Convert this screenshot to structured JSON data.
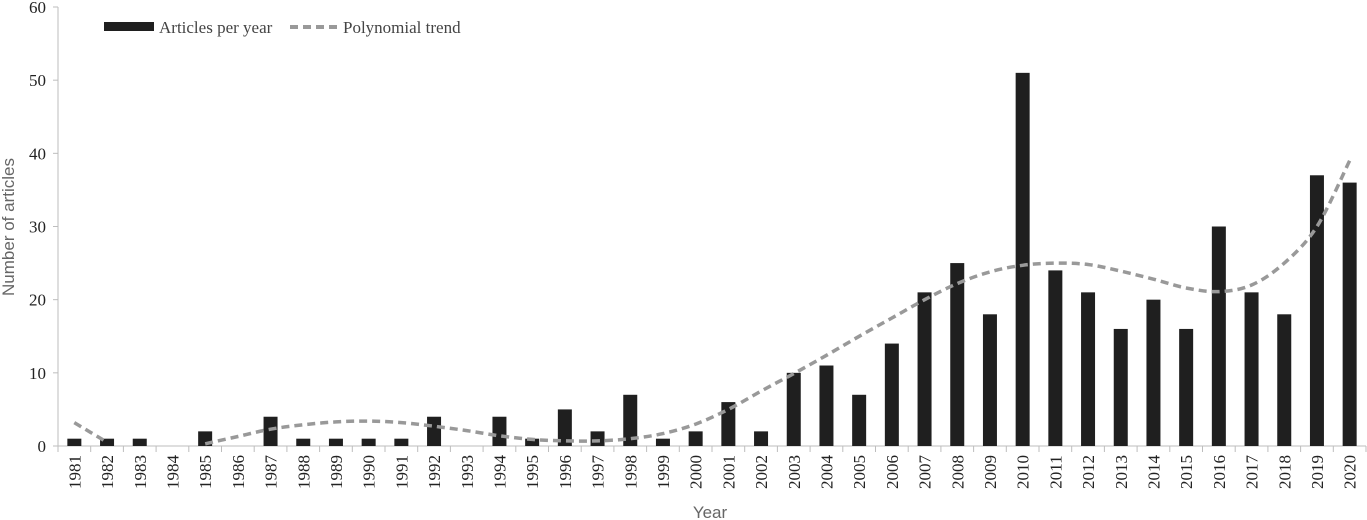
{
  "chart_data": {
    "type": "bar",
    "categories": [
      "1981",
      "1982",
      "1983",
      "1984",
      "1985",
      "1986",
      "1987",
      "1988",
      "1989",
      "1990",
      "1991",
      "1992",
      "1993",
      "1994",
      "1995",
      "1996",
      "1997",
      "1998",
      "1999",
      "2000",
      "2001",
      "2002",
      "2003",
      "2004",
      "2005",
      "2006",
      "2007",
      "2008",
      "2009",
      "2010",
      "2011",
      "2012",
      "2013",
      "2014",
      "2015",
      "2016",
      "2017",
      "2018",
      "2019",
      "2020"
    ],
    "series": [
      {
        "name": "Articles per year",
        "type": "bar",
        "color": "#1f1f1f",
        "values": [
          1,
          1,
          1,
          0,
          2,
          0,
          4,
          1,
          1,
          1,
          1,
          4,
          0,
          4,
          1,
          5,
          2,
          7,
          1,
          2,
          6,
          2,
          10,
          11,
          7,
          14,
          21,
          25,
          18,
          51,
          24,
          21,
          16,
          20,
          16,
          30,
          21,
          18,
          37,
          36
        ]
      },
      {
        "name": "Polynomial trend",
        "type": "line",
        "style": "dashed",
        "color": "#999999",
        "values": [
          3.2,
          0.5,
          null,
          null,
          0.3,
          1.3,
          2.3,
          2.9,
          3.3,
          3.4,
          3.2,
          2.7,
          2.1,
          1.4,
          0.9,
          0.7,
          0.7,
          1.0,
          1.7,
          3.0,
          5.0,
          7.5,
          9.9,
          12.4,
          15.0,
          17.5,
          20.0,
          22.2,
          23.8,
          24.7,
          25.0,
          24.8,
          23.9,
          22.8,
          21.6,
          21.1,
          22.0,
          25.0,
          30.0,
          39.0
        ]
      }
    ],
    "xlabel": "Year",
    "ylabel": "Number of articles",
    "ylim": [
      0,
      60
    ],
    "yticks": [
      0,
      10,
      20,
      30,
      40,
      50,
      60
    ],
    "grid": false,
    "legend": "top-left"
  }
}
